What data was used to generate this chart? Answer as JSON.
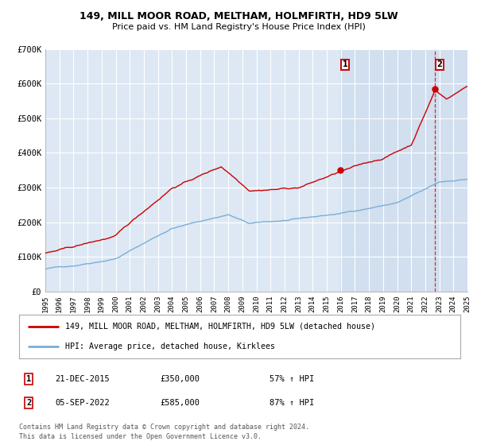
{
  "title_line1": "149, MILL MOOR ROAD, MELTHAM, HOLMFIRTH, HD9 5LW",
  "title_line2": "Price paid vs. HM Land Registry's House Price Index (HPI)",
  "bg_color": "#ffffff",
  "plot_bg_color": "#dde8f4",
  "grid_color": "#ffffff",
  "red_color": "#cc0000",
  "blue_color": "#7aaed6",
  "highlight_color": "#ccdcee",
  "xmin": 1995,
  "xmax": 2025,
  "ymin": 0,
  "ymax": 700000,
  "yticks": [
    0,
    100000,
    200000,
    300000,
    400000,
    500000,
    600000,
    700000
  ],
  "ytick_labels": [
    "£0",
    "£100K",
    "£200K",
    "£300K",
    "£400K",
    "£500K",
    "£600K",
    "£700K"
  ],
  "sale1_x": 2015.97,
  "sale1_y": 350000,
  "sale2_x": 2022.68,
  "sale2_y": 585000,
  "sale1_date": "21-DEC-2015",
  "sale1_price": "£350,000",
  "sale1_hpi": "57% ↑ HPI",
  "sale2_date": "05-SEP-2022",
  "sale2_price": "£585,000",
  "sale2_hpi": "87% ↑ HPI",
  "legend_line1": "149, MILL MOOR ROAD, MELTHAM, HOLMFIRTH, HD9 5LW (detached house)",
  "legend_line2": "HPI: Average price, detached house, Kirklees",
  "footer1": "Contains HM Land Registry data © Crown copyright and database right 2024.",
  "footer2": "This data is licensed under the Open Government Licence v3.0."
}
